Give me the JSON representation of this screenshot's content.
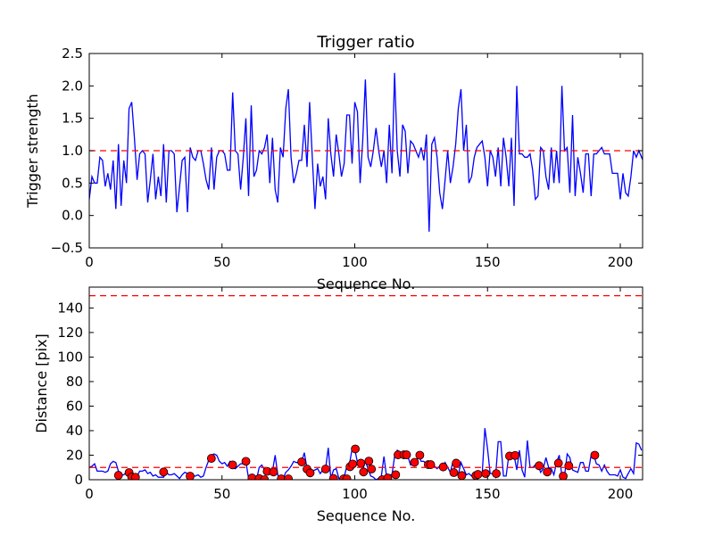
{
  "chart_data": [
    {
      "type": "line",
      "title": "Trigger ratio",
      "xlabel": "Sequence No.",
      "ylabel": "Trigger strength",
      "xlim": [
        0,
        208.4
      ],
      "ylim": [
        -0.5,
        2.5
      ],
      "xticks": [
        "0",
        "50",
        "100",
        "150",
        "200"
      ],
      "xtick_values": [
        0,
        50,
        100,
        150,
        200
      ],
      "yticks": [
        "−0.5",
        "0.0",
        "0.5",
        "1.0",
        "1.5",
        "2.0",
        "2.5"
      ],
      "ytick_values": [
        -0.5,
        0,
        0.5,
        1,
        1.5,
        2,
        2.5
      ],
      "grid": false,
      "series": [
        {
          "name": "trigger strength",
          "color": "#0000ff",
          "style": "solid",
          "values": [
            0.25,
            0.6,
            0.5,
            0.5,
            0.9,
            0.85,
            0.45,
            0.65,
            0.4,
            0.85,
            0.1,
            1.1,
            0.15,
            0.85,
            0.5,
            1.65,
            1.75,
            1.2,
            0.55,
            0.95,
            1.0,
            0.95,
            0.2,
            0.55,
            0.95,
            0.25,
            0.6,
            0.3,
            1.1,
            0.2,
            1.0,
            1.0,
            0.95,
            0.05,
            0.45,
            0.85,
            0.9,
            0.05,
            1.05,
            0.9,
            0.85,
            1.0,
            1.0,
            0.8,
            0.55,
            0.4,
            1.05,
            0.4,
            0.9,
            1.0,
            1.0,
            0.95,
            0.7,
            0.7,
            1.9,
            1.0,
            0.95,
            0.4,
            0.9,
            1.5,
            0.3,
            1.7,
            0.6,
            0.7,
            1.0,
            0.95,
            1.05,
            1.25,
            0.5,
            1.2,
            0.4,
            0.2,
            1.05,
            0.9,
            1.65,
            1.95,
            0.9,
            0.5,
            0.65,
            0.85,
            0.85,
            1.4,
            0.75,
            1.75,
            0.9,
            0.1,
            0.8,
            0.45,
            0.6,
            0.25,
            1.5,
            0.95,
            0.6,
            1.25,
            0.95,
            0.6,
            0.8,
            1.55,
            1.55,
            0.8,
            1.75,
            1.6,
            0.5,
            1.15,
            2.1,
            0.9,
            0.75,
            1.0,
            1.35,
            1.0,
            0.75,
            1.0,
            0.5,
            1.4,
            0.65,
            2.2,
            1.0,
            0.6,
            1.4,
            1.3,
            0.65,
            1.15,
            1.1,
            1.0,
            0.9,
            1.05,
            0.85,
            1.25,
            -0.25,
            1.1,
            1.2,
            0.9,
            0.35,
            0.1,
            0.55,
            1.0,
            0.5,
            0.75,
            1.1,
            1.65,
            1.95,
            1.0,
            1.4,
            0.5,
            0.6,
            0.9,
            1.05,
            1.1,
            1.15,
            0.9,
            0.45,
            1.0,
            0.9,
            0.6,
            1.05,
            0.45,
            1.2,
            0.9,
            0.45,
            1.2,
            0.15,
            2.0,
            0.95,
            0.95,
            0.9,
            0.9,
            0.95,
            0.7,
            0.25,
            0.3,
            1.05,
            1.0,
            0.6,
            0.4,
            1.05,
            0.5,
            1.0,
            0.5,
            2.0,
            1.0,
            1.05,
            0.35,
            1.55,
            0.3,
            0.9,
            0.65,
            0.35,
            0.95,
            0.95,
            0.3,
            0.95,
            0.95,
            1.0,
            1.05,
            0.95,
            0.95,
            0.95,
            0.65,
            0.65,
            0.65,
            0.25,
            0.65,
            0.35,
            0.3,
            0.6,
            1.0,
            0.9,
            1.0,
            0.9,
            0.8,
            0.5
          ]
        },
        {
          "name": "threshold",
          "color": "#ff0000",
          "style": "dashed",
          "y": 1.0
        }
      ]
    },
    {
      "type": "line",
      "title": "",
      "xlabel": "Sequence No.",
      "ylabel": "Distance [pix]",
      "xlim": [
        0,
        208.4
      ],
      "ylim": [
        0,
        157
      ],
      "xticks": [
        "0",
        "50",
        "100",
        "150",
        "200"
      ],
      "xtick_values": [
        0,
        50,
        100,
        150,
        200
      ],
      "yticks": [
        "0",
        "20",
        "40",
        "60",
        "80",
        "100",
        "120",
        "140"
      ],
      "ytick_values": [
        0,
        20,
        40,
        60,
        80,
        100,
        120,
        140
      ],
      "grid": false,
      "series": [
        {
          "name": "distance",
          "color": "#0000ff",
          "style": "solid",
          "values": [
            10,
            11,
            13,
            7,
            7,
            7,
            6,
            7,
            13,
            15,
            14,
            7,
            4,
            4,
            6,
            4,
            2,
            2,
            3,
            7,
            7,
            8,
            5,
            6,
            3,
            4,
            2,
            2,
            2,
            6,
            4,
            4,
            5,
            3,
            1,
            4,
            6,
            5,
            4,
            3,
            3,
            4,
            2,
            3,
            10,
            16,
            20,
            21,
            20,
            15,
            13,
            14,
            11,
            15,
            12,
            9,
            11,
            13,
            13,
            15,
            1,
            1,
            2,
            0,
            10,
            12,
            8,
            7,
            6,
            7,
            20,
            4,
            0,
            1,
            6,
            8,
            11,
            15,
            14,
            14,
            15,
            22,
            9,
            5,
            7,
            8,
            9,
            5,
            8,
            9,
            26,
            1,
            8,
            9,
            1,
            1,
            2,
            11,
            13,
            25,
            25,
            14,
            16,
            8,
            15,
            9,
            3,
            2,
            0,
            1,
            3,
            19,
            2,
            4,
            4,
            19,
            24,
            22,
            20,
            20,
            19,
            12,
            14,
            14,
            20,
            15,
            15,
            12,
            12,
            13,
            11,
            9,
            11,
            8,
            14,
            10,
            6,
            15,
            5,
            4,
            14,
            9,
            4,
            5,
            3,
            4,
            5,
            6,
            5,
            42,
            25,
            5,
            5,
            2,
            31,
            31,
            3,
            3,
            20,
            20,
            20,
            8,
            24,
            8,
            2,
            32,
            10,
            10,
            12,
            12,
            6,
            9,
            18,
            10,
            9,
            4,
            14,
            20,
            3,
            3,
            21,
            18,
            8,
            7,
            6,
            14,
            14,
            7,
            7,
            20,
            20,
            13,
            12,
            7,
            12,
            7,
            4,
            4,
            4,
            3,
            8,
            2,
            1,
            5,
            9,
            5,
            30,
            29,
            24
          ]
        },
        {
          "name": "detections",
          "color": "#ff0000",
          "style": "markers",
          "points": [
            [
              11,
              3.6
            ],
            [
              15,
              5.8
            ],
            [
              16,
              2.2
            ],
            [
              17.4,
              2
            ],
            [
              28,
              6.3
            ],
            [
              38,
              2.9
            ],
            [
              46,
              17.4
            ],
            [
              54,
              12.1
            ],
            [
              59,
              15
            ],
            [
              61.3,
              1.4
            ],
            [
              64,
              1
            ],
            [
              66,
              0
            ],
            [
              67,
              6.8
            ],
            [
              69.4,
              6.3
            ],
            [
              72.3,
              0.7
            ],
            [
              75,
              0.7
            ],
            [
              80,
              14.5
            ],
            [
              82,
              8.7
            ],
            [
              83.2,
              5.6
            ],
            [
              89,
              8.7
            ],
            [
              92,
              1
            ],
            [
              95.8,
              0.7
            ],
            [
              97,
              0.7
            ],
            [
              98.2,
              10.6
            ],
            [
              99.2,
              12.8
            ],
            [
              100.2,
              25.1
            ],
            [
              102.3,
              13.5
            ],
            [
              103.3,
              6.3
            ],
            [
              105.3,
              15.2
            ],
            [
              106.3,
              8.7
            ],
            [
              110.3,
              0
            ],
            [
              112.4,
              1.4
            ],
            [
              115.4,
              4.1
            ],
            [
              116.3,
              20.3
            ],
            [
              118.5,
              20.3
            ],
            [
              119.5,
              20.3
            ],
            [
              122.5,
              14.2
            ],
            [
              124.5,
              20
            ],
            [
              127.7,
              12.3
            ],
            [
              128.6,
              12.3
            ],
            [
              133.3,
              10.4
            ],
            [
              137.3,
              5.8
            ],
            [
              138.2,
              13.5
            ],
            [
              140.3,
              3.4
            ],
            [
              145.6,
              3.4
            ],
            [
              146.4,
              4.3
            ],
            [
              149.3,
              5
            ],
            [
              153.3,
              5
            ],
            [
              158.3,
              19.3
            ],
            [
              160.4,
              19.8
            ],
            [
              169.4,
              11.4
            ],
            [
              172.5,
              6.3
            ],
            [
              176.7,
              13.5
            ],
            [
              178.5,
              2.9
            ],
            [
              180.6,
              11.4
            ],
            [
              190.4,
              20
            ]
          ]
        },
        {
          "name": "lower threshold",
          "color": "#ff0000",
          "style": "dashed",
          "y": 10
        },
        {
          "name": "upper threshold",
          "color": "#ff0000",
          "style": "dashed",
          "y": 150
        }
      ]
    }
  ]
}
